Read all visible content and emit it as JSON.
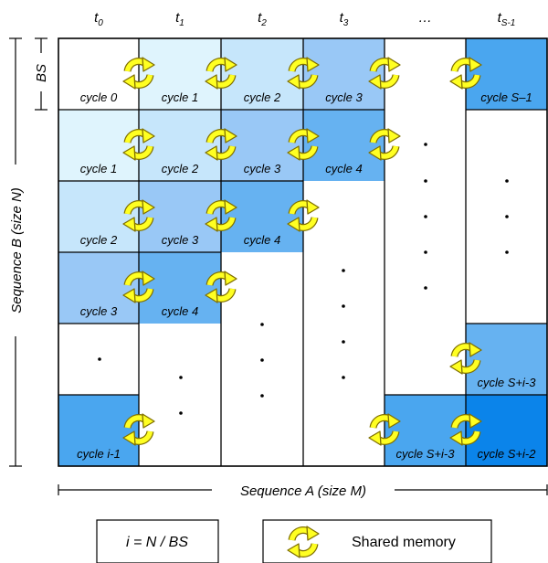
{
  "time_labels": [
    {
      "base": "t",
      "sub": "0"
    },
    {
      "base": "t",
      "sub": "1"
    },
    {
      "base": "t",
      "sub": "2"
    },
    {
      "base": "t",
      "sub": "3"
    },
    {
      "base": "…",
      "sub": ""
    },
    {
      "base": "t",
      "sub": "S-1"
    }
  ],
  "axis": {
    "bs_label": "BS",
    "y_label": "Sequence B (size N)",
    "x_label": "Sequence A (size M)"
  },
  "cells": [
    {
      "row": 0,
      "col": 0,
      "label": "cycle 0",
      "color": "#ffffff"
    },
    {
      "row": 0,
      "col": 1,
      "label": "cycle 1",
      "color": "#dff4fd"
    },
    {
      "row": 0,
      "col": 2,
      "label": "cycle 2",
      "color": "#c6e6fb"
    },
    {
      "row": 0,
      "col": 3,
      "label": "cycle 3",
      "color": "#99c8f6"
    },
    {
      "row": 0,
      "col": 5,
      "label": "cycle S–1",
      "color": "#4aa6ef"
    },
    {
      "row": 1,
      "col": 0,
      "label": "cycle 1",
      "color": "#dff4fd"
    },
    {
      "row": 1,
      "col": 1,
      "label": "cycle 2",
      "color": "#c6e6fb"
    },
    {
      "row": 1,
      "col": 2,
      "label": "cycle 3",
      "color": "#99c8f6"
    },
    {
      "row": 1,
      "col": 3,
      "label": "cycle 4",
      "color": "#66b2f1"
    },
    {
      "row": 2,
      "col": 0,
      "label": "cycle 2",
      "color": "#c6e6fb"
    },
    {
      "row": 2,
      "col": 1,
      "label": "cycle 3",
      "color": "#99c8f6"
    },
    {
      "row": 2,
      "col": 2,
      "label": "cycle 4",
      "color": "#66b2f1"
    },
    {
      "row": 3,
      "col": 0,
      "label": "cycle 3",
      "color": "#99c8f6"
    },
    {
      "row": 3,
      "col": 1,
      "label": "cycle 4",
      "color": "#66b2f1"
    },
    {
      "row": 4,
      "col": 5,
      "label": "cycle S+i-3",
      "color": "#66b2f1"
    },
    {
      "row": 5,
      "col": 0,
      "label": "cycle i-1",
      "color": "#4aa6ef"
    },
    {
      "row": 5,
      "col": 4,
      "label": "cycle S+i-3",
      "color": "#4aa6ef"
    },
    {
      "row": 5,
      "col": 5,
      "label": "cycle S+i-2",
      "color": "#0b84ea"
    }
  ],
  "legend": {
    "formula": "i = N / BS",
    "shared_memory": "Shared memory"
  }
}
